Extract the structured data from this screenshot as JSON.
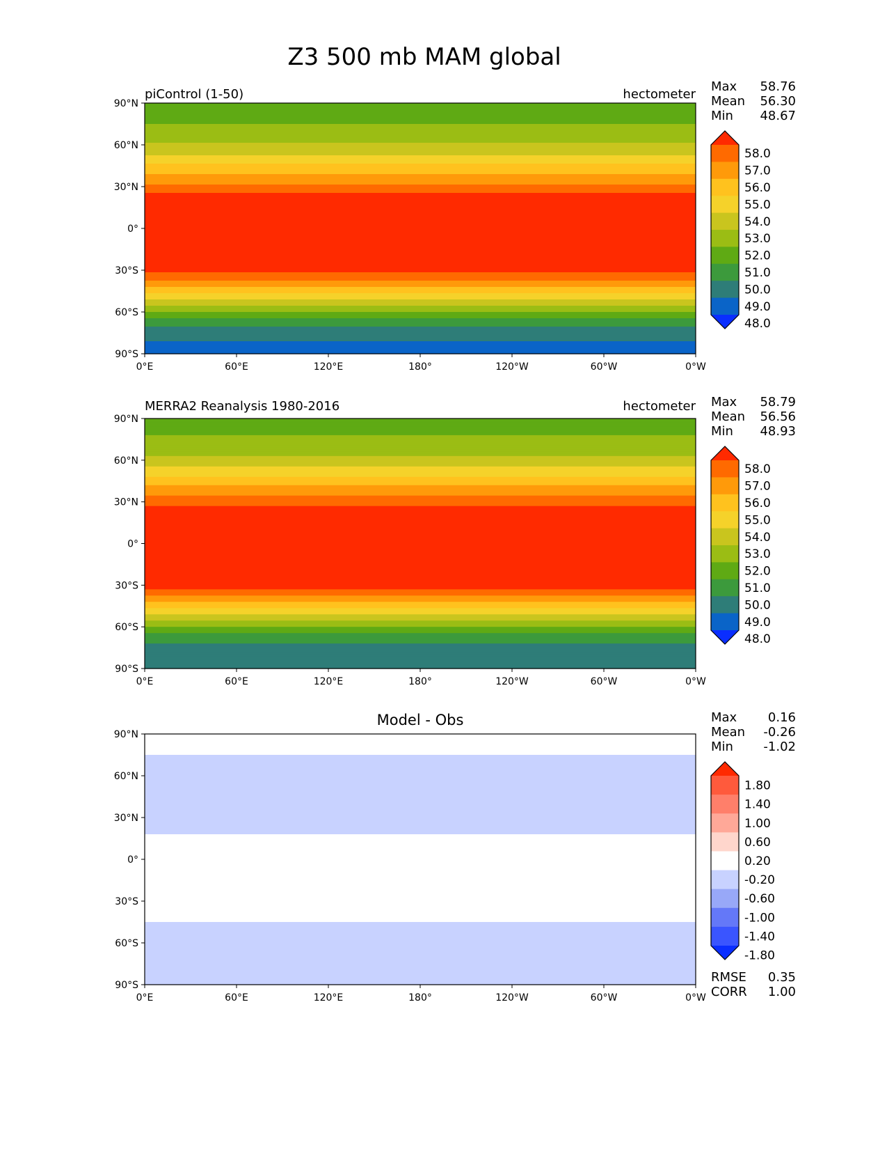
{
  "figure_title": "Z3 500 mb MAM global",
  "x_ticks": [
    "0°E",
    "60°E",
    "120°E",
    "180°",
    "120°W",
    "60°W",
    "0°W"
  ],
  "y_ticks": [
    "90°N",
    "60°N",
    "30°N",
    "0°",
    "30°S",
    "60°S",
    "90°S"
  ],
  "stat_labels": {
    "max": "Max",
    "mean": "Mean",
    "min": "Min",
    "rmse": "RMSE",
    "corr": "CORR"
  },
  "chart_data": [
    {
      "type": "heatmap",
      "title_left": "piControl (1-50)",
      "title_right": "hectometer",
      "stats": {
        "max": "58.76",
        "mean": "56.30",
        "min": "48.67"
      },
      "xlim": [
        0,
        360
      ],
      "ylim": [
        -90,
        90
      ],
      "levels": [
        "58.0",
        "57.0",
        "56.0",
        "55.0",
        "54.0",
        "53.0",
        "52.0",
        "51.0",
        "50.0",
        "49.0",
        "48.0"
      ],
      "colormap": [
        "#ff2a00",
        "#ff6a00",
        "#ff9a0a",
        "#ffc21e",
        "#f5d22a",
        "#c9c51e",
        "#9bbd14",
        "#5faa14",
        "#3c9a3c",
        "#2e7d78",
        "#0a64c8",
        "#0a2eff"
      ],
      "zonal_profile": [
        [
          -90,
          48.3
        ],
        [
          -85,
          48.7
        ],
        [
          -78,
          49.3
        ],
        [
          -70,
          50.0
        ],
        [
          -62,
          51.4
        ],
        [
          -55,
          53.0
        ],
        [
          -48,
          54.7
        ],
        [
          -40,
          56.5
        ],
        [
          -34,
          57.6
        ],
        [
          -30,
          58.3
        ],
        [
          -20,
          58.6
        ],
        [
          0,
          58.7
        ],
        [
          20,
          58.6
        ],
        [
          24,
          58.1
        ],
        [
          30,
          57.3
        ],
        [
          40,
          55.9
        ],
        [
          50,
          54.4
        ],
        [
          60,
          53.1
        ],
        [
          70,
          52.2
        ],
        [
          80,
          51.8
        ],
        [
          90,
          51.6
        ]
      ]
    },
    {
      "type": "heatmap",
      "title_left": "MERRA2 Reanalysis 1980-2016",
      "title_right": "hectometer",
      "stats": {
        "max": "58.79",
        "mean": "56.56",
        "min": "48.93"
      },
      "xlim": [
        0,
        360
      ],
      "ylim": [
        -90,
        90
      ],
      "levels": [
        "58.0",
        "57.0",
        "56.0",
        "55.0",
        "54.0",
        "53.0",
        "52.0",
        "51.0",
        "50.0",
        "49.0",
        "48.0"
      ],
      "colormap": [
        "#ff2a00",
        "#ff6a00",
        "#ff9a0a",
        "#ffc21e",
        "#f5d22a",
        "#c9c51e",
        "#9bbd14",
        "#5faa14",
        "#3c9a3c",
        "#2e7d78",
        "#0a64c8",
        "#0a2eff"
      ],
      "zonal_profile": [
        [
          -90,
          49.0
        ],
        [
          -85,
          49.2
        ],
        [
          -78,
          49.5
        ],
        [
          -70,
          50.1
        ],
        [
          -62,
          51.5
        ],
        [
          -55,
          53.1
        ],
        [
          -48,
          54.8
        ],
        [
          -40,
          56.6
        ],
        [
          -34,
          57.7
        ],
        [
          -30,
          58.4
        ],
        [
          -20,
          58.7
        ],
        [
          0,
          58.75
        ],
        [
          20,
          58.7
        ],
        [
          26,
          58.2
        ],
        [
          32,
          57.4
        ],
        [
          40,
          56.2
        ],
        [
          50,
          54.7
        ],
        [
          60,
          53.3
        ],
        [
          70,
          52.4
        ],
        [
          80,
          51.9
        ],
        [
          90,
          51.7
        ]
      ]
    },
    {
      "type": "heatmap",
      "title_center": "Model - Obs",
      "stats": {
        "max": "0.16",
        "mean": "-0.26",
        "min": "-1.02",
        "rmse": "0.35",
        "corr": "1.00"
      },
      "xlim": [
        0,
        360
      ],
      "ylim": [
        -90,
        90
      ],
      "levels": [
        "1.80",
        "1.40",
        "1.00",
        "0.60",
        "0.20",
        "-0.20",
        "-0.60",
        "-1.00",
        "-1.40",
        "-1.80"
      ],
      "colormap": [
        "#ff2a00",
        "#ff5a3c",
        "#ff7f6a",
        "#ffa898",
        "#ffd6cc",
        "#ffffff",
        "#c8d2ff",
        "#98a8f8",
        "#6478f8",
        "#3a55ff",
        "#0a2eff"
      ],
      "zonal_profile": [
        [
          -90,
          -0.5
        ],
        [
          -80,
          -0.45
        ],
        [
          -70,
          -0.35
        ],
        [
          -60,
          -0.5
        ],
        [
          -50,
          -0.3
        ],
        [
          -40,
          -0.1
        ],
        [
          -20,
          -0.05
        ],
        [
          0,
          -0.05
        ],
        [
          15,
          -0.1
        ],
        [
          20,
          -0.25
        ],
        [
          30,
          -0.4
        ],
        [
          45,
          -0.55
        ],
        [
          55,
          -0.5
        ],
        [
          65,
          -0.3
        ],
        [
          75,
          -0.2
        ],
        [
          90,
          -0.1
        ]
      ]
    }
  ]
}
